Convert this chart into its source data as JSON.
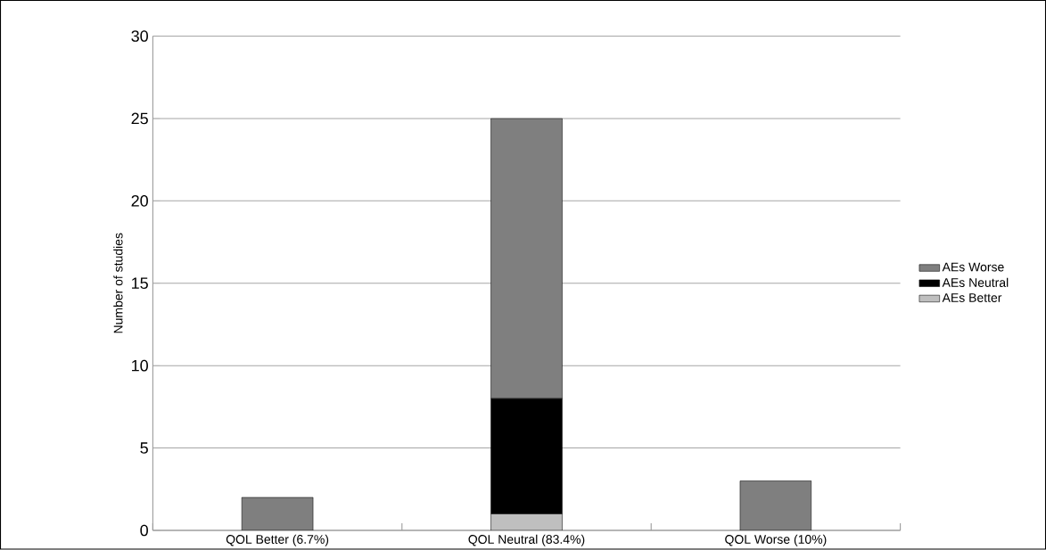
{
  "chart_data": {
    "type": "bar",
    "stacked": true,
    "ylabel": "Number of studies",
    "categories": [
      "QOL Better (6.7%)",
      "QOL Neutral (83.4%)",
      "QOL Worse (10%)"
    ],
    "series": [
      {
        "name": "AEs Better",
        "color": "#bfbfbf",
        "values": [
          0,
          1,
          0
        ]
      },
      {
        "name": "AEs Neutral",
        "color": "#000000",
        "values": [
          0,
          7,
          0
        ]
      },
      {
        "name": "AEs Worse",
        "color": "#7f7f7f",
        "values": [
          2,
          17,
          3
        ]
      }
    ],
    "ylim": [
      0,
      30
    ],
    "yticks": [
      0,
      5,
      10,
      15,
      20,
      25,
      30
    ],
    "grid": "y",
    "legend": "right"
  }
}
